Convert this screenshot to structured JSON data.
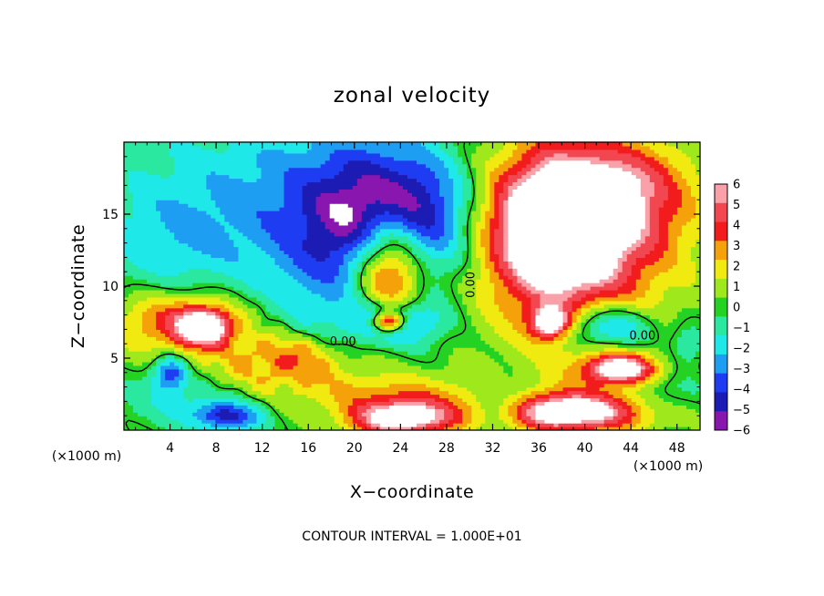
{
  "chart_data": {
    "type": "heatmap",
    "title": "zonal velocity",
    "xlabel": "X−coordinate",
    "ylabel": "Z−coordinate",
    "x_unit_left": "(×1000 m)",
    "x_unit_right": "(×1000 m)",
    "xlim": [
      0,
      50
    ],
    "ylim": [
      0,
      20
    ],
    "x_ticks": [
      4,
      8,
      12,
      16,
      20,
      24,
      28,
      32,
      36,
      40,
      44,
      48
    ],
    "x_tick_labels": [
      "4",
      "8",
      "12",
      "16",
      "20",
      "24",
      "28",
      "32",
      "36",
      "40",
      "44",
      "48"
    ],
    "y_ticks": [
      5,
      10,
      15
    ],
    "y_tick_labels": [
      "5",
      "10",
      "15"
    ],
    "colorbar": {
      "levels": [
        6,
        5,
        4,
        3,
        2,
        1,
        0,
        -1,
        -2,
        -3,
        -4,
        -5,
        -6
      ],
      "labels": [
        "6",
        "5",
        "4",
        "3",
        "2",
        "1",
        "0",
        "−1",
        "−2",
        "−3",
        "−4",
        "−5",
        "−6"
      ],
      "colors": [
        "#f9a0a8",
        "#f24650",
        "#f21c1c",
        "#f5a20a",
        "#f0ea10",
        "#9ee81c",
        "#24d224",
        "#2ae8a0",
        "#1ee8e8",
        "#1e9ef2",
        "#1e3cf2",
        "#1c1cb4",
        "#8a16b0"
      ]
    },
    "contour_labels": [
      {
        "text": "0.00",
        "x": 19.0,
        "z": 5.9
      },
      {
        "text": "0.00",
        "x": 30.4,
        "z": 10.1
      },
      {
        "text": "0.00",
        "x": 45.0,
        "z": 6.3
      }
    ],
    "footer": "CONTOUR INTERVAL = 1.000E+01",
    "blobs": [
      {
        "x": 11,
        "z": 17,
        "rx": 13,
        "rz": 6,
        "v": -1.8
      },
      {
        "x": 21,
        "z": 13,
        "rx": 9,
        "rz": 7,
        "v": -4.0
      },
      {
        "x": 24,
        "z": 15,
        "rx": 6,
        "rz": 4,
        "v": -5.2
      },
      {
        "x": 4,
        "z": 13,
        "rx": 6,
        "rz": 4,
        "v": -1.6
      },
      {
        "x": 5,
        "z": 7.5,
        "rx": 6,
        "rz": 2.2,
        "v": 4.5
      },
      {
        "x": 7,
        "z": 7.2,
        "rx": 2.2,
        "rz": 1.2,
        "v": 6.8
      },
      {
        "x": 4,
        "z": 4,
        "rx": 1.5,
        "rz": 1.2,
        "v": -4.5
      },
      {
        "x": 14,
        "z": 4.5,
        "rx": 6,
        "rz": 1.7,
        "v": 3.2
      },
      {
        "x": 15,
        "z": 5.8,
        "rx": 4,
        "rz": 1.3,
        "v": 1.5
      },
      {
        "x": 23,
        "z": 2.6,
        "rx": 9,
        "rz": 1.6,
        "v": 2.6
      },
      {
        "x": 24,
        "z": 0.8,
        "rx": 4.5,
        "rz": 1.3,
        "v": 7.5
      },
      {
        "x": 23,
        "z": 11.5,
        "rx": 3.2,
        "rz": 4.3,
        "v": 8.5
      },
      {
        "x": 23.5,
        "z": 7.5,
        "rx": 3.5,
        "rz": 1.5,
        "v": -5.2
      },
      {
        "x": 23,
        "z": 7.5,
        "rx": 1.4,
        "rz": 0.7,
        "v": 8.0
      },
      {
        "x": 5,
        "z": 2.0,
        "rx": 5,
        "rz": 1.6,
        "v": -1.5
      },
      {
        "x": 9,
        "z": 1.0,
        "rx": 3,
        "rz": 1.0,
        "v": -4.5
      },
      {
        "x": 38,
        "z": 14.5,
        "rx": 6,
        "rz": 4.5,
        "v": 8.5
      },
      {
        "x": 38,
        "z": 12,
        "rx": 10,
        "rz": 8,
        "v": 4.0
      },
      {
        "x": 44,
        "z": 17,
        "rx": 6,
        "rz": 3,
        "v": 3.0
      },
      {
        "x": 47,
        "z": 13.5,
        "rx": 4,
        "rz": 2.2,
        "v": 0.6
      },
      {
        "x": 42,
        "z": 7.2,
        "rx": 4,
        "rz": 1.6,
        "v": -4.8
      },
      {
        "x": 37,
        "z": 7.5,
        "rx": 1.6,
        "rz": 1.0,
        "v": 7.0
      },
      {
        "x": 43,
        "z": 4.3,
        "rx": 3,
        "rz": 1.0,
        "v": 7.5
      },
      {
        "x": 33,
        "z": 5,
        "rx": 3,
        "rz": 3,
        "v": -0.5
      },
      {
        "x": 38,
        "z": 1.3,
        "rx": 7,
        "rz": 1.4,
        "v": 8.0
      },
      {
        "x": 33,
        "z": 1.6,
        "rx": 3,
        "rz": 1.6,
        "v": -3.8
      },
      {
        "x": 47,
        "z": 2.5,
        "rx": 3,
        "rz": 1.5,
        "v": -1.5
      },
      {
        "x": 49,
        "z": 6,
        "rx": 1.5,
        "rz": 1.5,
        "v": -2.0
      }
    ]
  }
}
